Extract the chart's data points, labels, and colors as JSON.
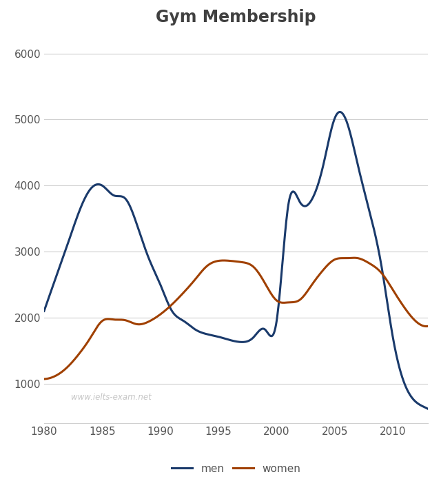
{
  "title": "Gym Membership",
  "title_fontsize": 17,
  "title_fontweight": "bold",
  "title_color": "#404040",
  "xlabel": "",
  "ylabel": "",
  "xlim": [
    1980,
    2013
  ],
  "ylim": [
    400,
    6300
  ],
  "yticks": [
    1000,
    2000,
    3000,
    4000,
    5000,
    6000
  ],
  "xticks": [
    1980,
    1985,
    1990,
    1995,
    2000,
    2005,
    2010
  ],
  "background_color": "#ffffff",
  "grid_color": "#d0d0d0",
  "men_color": "#1a3a6b",
  "women_color": "#a04000",
  "men_label": "men",
  "women_label": "women",
  "watermark": "www.ielts-exam.net",
  "men_x": [
    1980,
    1981,
    1982,
    1983,
    1984,
    1985,
    1986,
    1987,
    1988,
    1989,
    1990,
    1991,
    1992,
    1993,
    1994,
    1995,
    1996,
    1997,
    1998,
    1999,
    2000,
    2001,
    2002,
    2003,
    2004,
    2005,
    2006,
    2007,
    2008,
    2009,
    2010,
    2011,
    2012,
    2013
  ],
  "men_y": [
    2100,
    2600,
    3100,
    3600,
    3950,
    4000,
    3850,
    3800,
    3400,
    2900,
    2500,
    2100,
    1950,
    1820,
    1750,
    1710,
    1660,
    1630,
    1700,
    1820,
    1950,
    3700,
    3750,
    3780,
    4300,
    5020,
    4980,
    4300,
    3600,
    2800,
    1700,
    1000,
    720,
    620
  ],
  "women_x": [
    1980,
    1981,
    1982,
    1983,
    1984,
    1985,
    1986,
    1987,
    1988,
    1989,
    1990,
    1991,
    1992,
    1993,
    1994,
    1995,
    1996,
    1997,
    1998,
    1999,
    2000,
    2001,
    2002,
    2003,
    2004,
    2005,
    2006,
    2007,
    2008,
    2009,
    2010,
    2011,
    2012,
    2013
  ],
  "women_y": [
    1070,
    1120,
    1250,
    1450,
    1700,
    1950,
    1970,
    1960,
    1900,
    1940,
    2050,
    2200,
    2380,
    2580,
    2780,
    2860,
    2860,
    2840,
    2770,
    2520,
    2260,
    2230,
    2270,
    2490,
    2720,
    2880,
    2900,
    2900,
    2820,
    2680,
    2420,
    2150,
    1940,
    1870
  ],
  "line_width": 2.2,
  "legend_fontsize": 11,
  "tick_fontsize": 11,
  "tick_color": "#555555"
}
